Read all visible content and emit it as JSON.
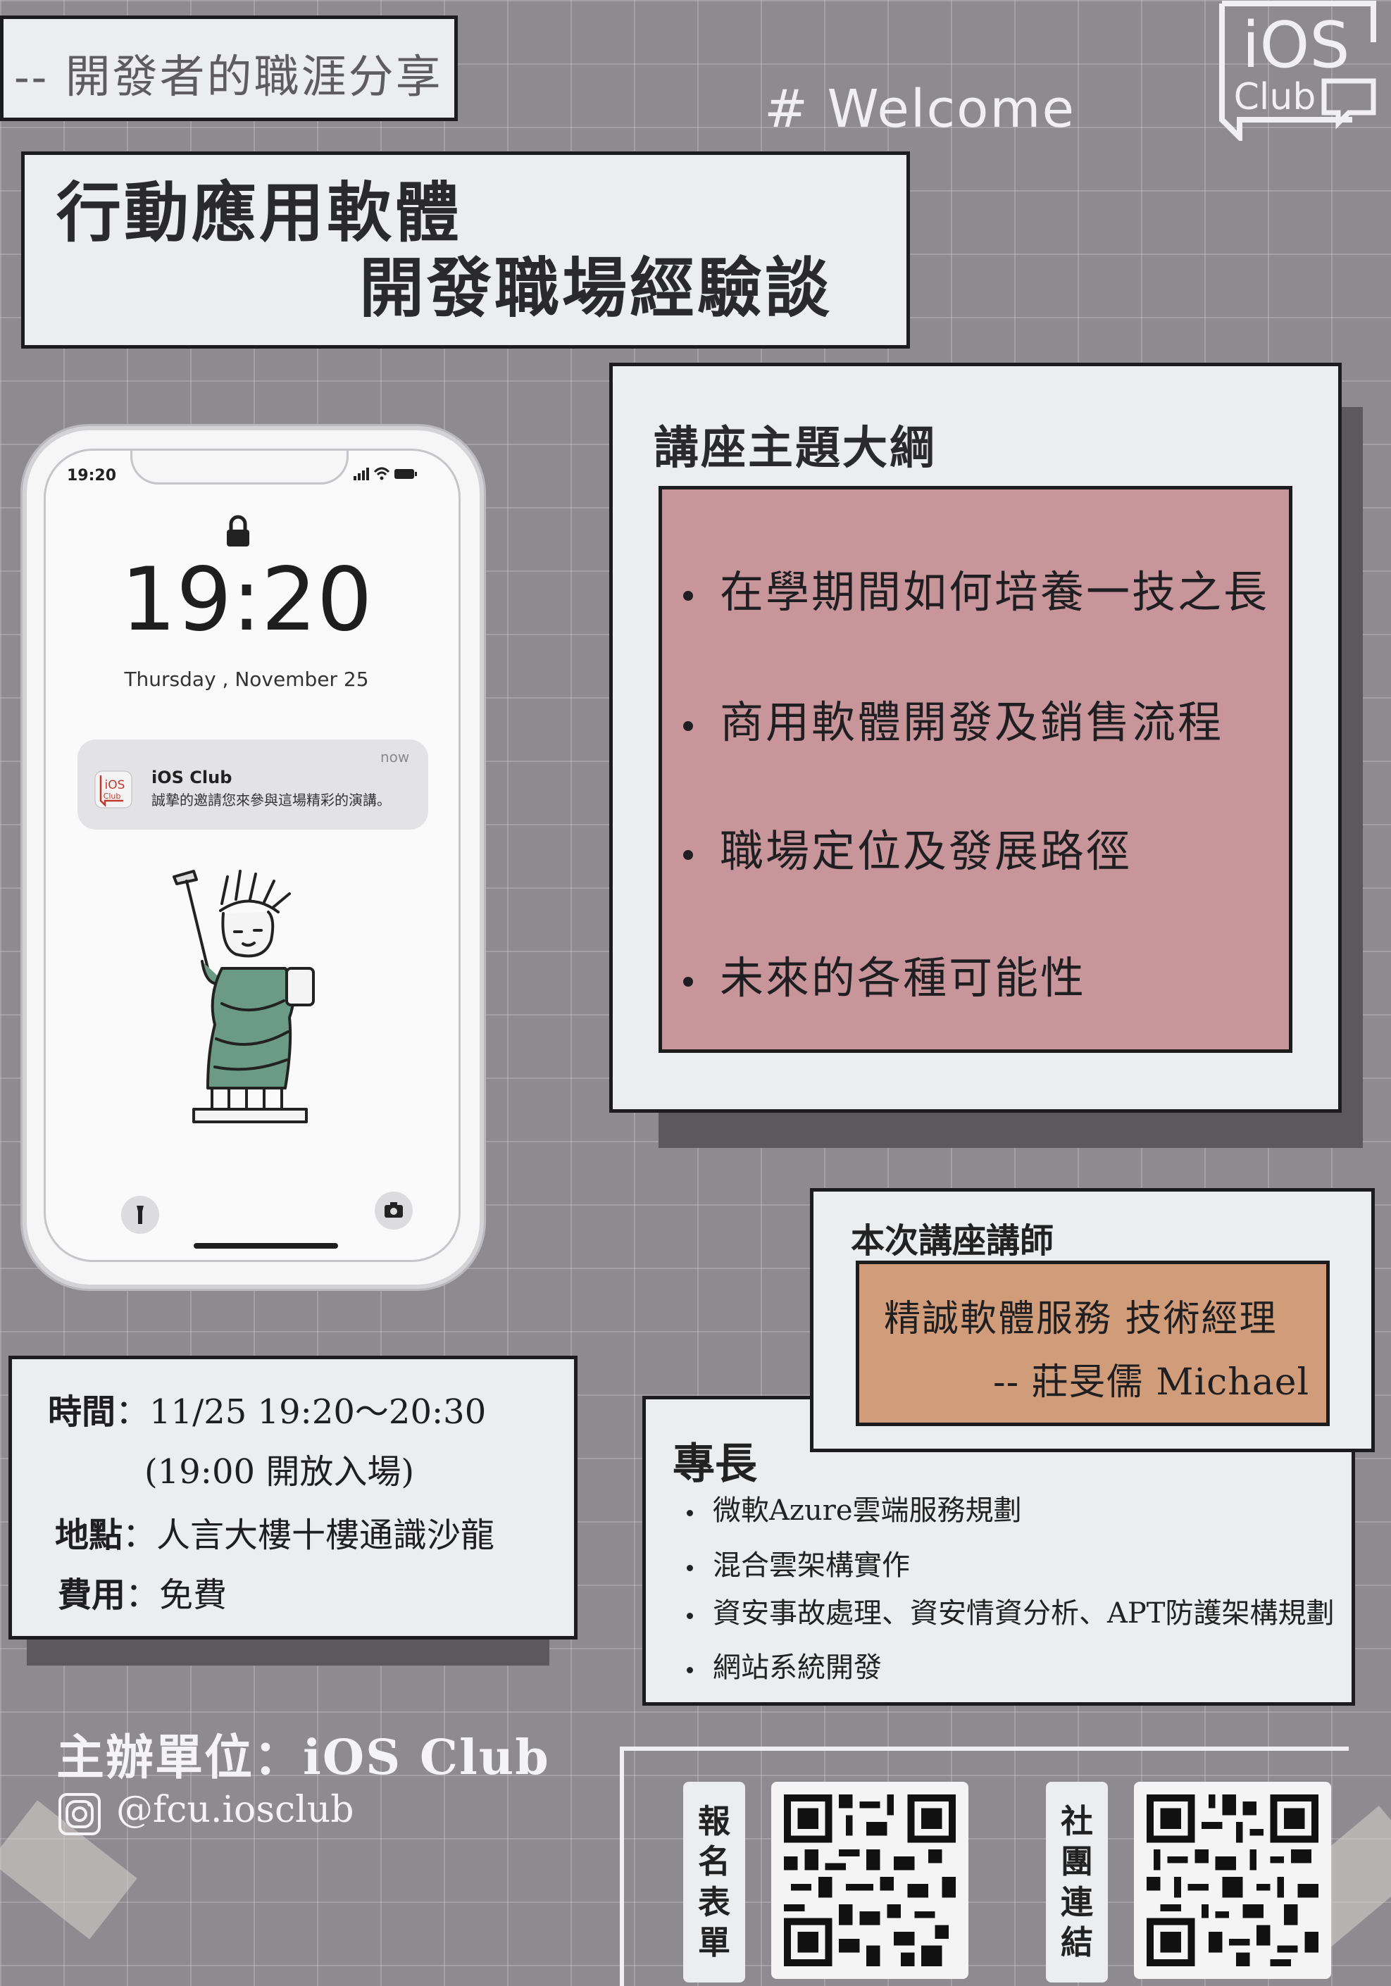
{
  "header": {
    "subtitle": "-- 開發者的職涯分享",
    "title_line1": "行動應用軟體",
    "title_line2": "開發職場經驗談",
    "welcome": "# Welcome",
    "logo_text_top": "iOS",
    "logo_text_bottom": "Club"
  },
  "phone": {
    "status_time": "19:20",
    "time": "19:20",
    "date": "Thursday , November 25",
    "notification": {
      "app": "iOS Club",
      "time": "now",
      "message": "誠摯的邀請您來參與這場精彩的演講。",
      "icon_text_top": "iOS",
      "icon_text_bottom": "Club"
    }
  },
  "outline": {
    "heading": "講座主題大綱",
    "items": [
      "在學期間如何培養一技之長",
      "商用軟體開發及銷售流程",
      "職場定位及發展路徑",
      "未來的各種可能性"
    ]
  },
  "speaker": {
    "label": "本次講座講師",
    "company_title": "精誠軟體服務  技術經理",
    "name": "-- 莊旻儒 Michael"
  },
  "expertise": {
    "heading": "專長",
    "items": [
      "微軟Azure雲端服務規劃",
      "混合雲架構實作",
      "資安事故處理、資安情資分析、APT防護架構規劃",
      "網站系統開發"
    ]
  },
  "info": {
    "time_label": "時間",
    "time_value": "：11/25  19:20～20:30",
    "time_note": "(19:00 開放入場)",
    "location_label": "地點",
    "location_value": "：人言大樓十樓通識沙龍",
    "fee_label": "費用",
    "fee_value": "：免費"
  },
  "footer": {
    "organizer": "主辦單位：iOS Club",
    "instagram": "@fcu.iosclub",
    "qr1_label": [
      "報",
      "名",
      "表",
      "單"
    ],
    "qr2_label": [
      "社",
      "團",
      "連",
      "結"
    ]
  },
  "colors": {
    "background": "#8e8b90",
    "outline_box": "#c8959b",
    "speaker_box": "#d09c7a",
    "card": "#ecedee",
    "statue": "#6b9a86"
  },
  "icons": [
    "lock-icon",
    "instagram-icon",
    "flashlight-icon",
    "camera-icon",
    "ios-club-logo",
    "statue-illustration"
  ]
}
